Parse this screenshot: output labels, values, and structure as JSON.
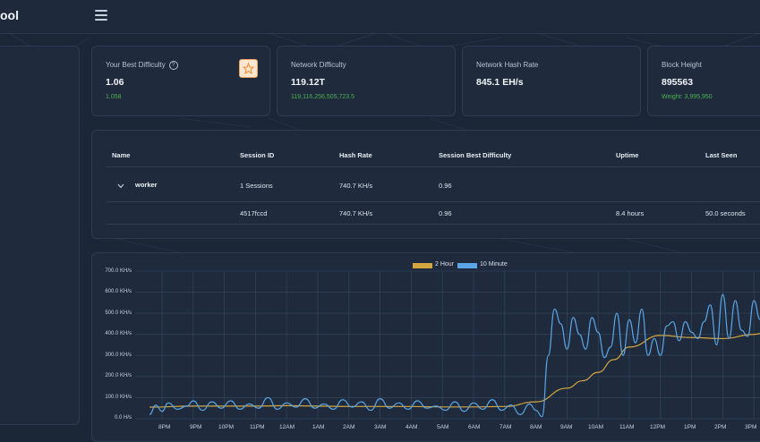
{
  "app": {
    "brand": "ool"
  },
  "icons": {
    "menu": "hamburger-menu-icon",
    "help": "help-circle-icon",
    "star": "star-icon",
    "expand": "chevron-down-icon"
  },
  "colors": {
    "background": "#1b2636",
    "card": "#1f2b3d",
    "positive": "#4caf50",
    "series_2h": "#d4a640",
    "series_10m": "#5aa6e6"
  },
  "stats": {
    "best_difficulty": {
      "label": "Your Best Difficulty",
      "value": "1.06",
      "sub": "1.058"
    },
    "network_difficulty": {
      "label": "Network Difficulty",
      "value": "119.12T",
      "sub": "119,116,256,505,723.5"
    },
    "network_hash_rate": {
      "label": "Network Hash Rate",
      "value": "845.1 EH/s"
    },
    "block_height": {
      "label": "Block Height",
      "value": "895563",
      "sub": "Weight: 3,995,950"
    }
  },
  "workers_table": {
    "headers": [
      "Name",
      "Session ID",
      "Hash Rate",
      "Session Best Difficulty",
      "Uptime",
      "Last Seen"
    ],
    "worker_row": {
      "name": "worker",
      "session": "1 Sessions",
      "hash_rate": "740.7 KH/s",
      "best_difficulty": "0.96"
    },
    "session_row": {
      "session_id": "4517fccd",
      "hash_rate": "740.7 KH/s",
      "best_difficulty": "0.96",
      "uptime": "8.4 hours",
      "last_seen": "50.0 seconds"
    }
  },
  "chart_data": {
    "type": "line",
    "legend": [
      "2 Hour",
      "10 Minute"
    ],
    "legend_position": "top-center",
    "y_ticks": [
      "700.0 KH/s",
      "600.0 KH/s",
      "500.0 KH/s",
      "400.0 KH/s",
      "300.0 KH/s",
      "200.0 KH/s",
      "100.0 KH/s",
      "0.0 H/s"
    ],
    "ylim": [
      0,
      700
    ],
    "x_ticks": [
      "8PM",
      "9PM",
      "10PM",
      "11PM",
      "12AM",
      "1AM",
      "2AM",
      "3AM",
      "4AM",
      "5AM",
      "6AM",
      "7AM",
      "8AM",
      "9AM",
      "10AM",
      "11AM",
      "12PM",
      "1PM",
      "2PM",
      "3PM"
    ],
    "grid": true,
    "series": [
      {
        "name": "2 Hour",
        "color": "#d4a640",
        "x": [
          7.6,
          9,
          10,
          11,
          12,
          13,
          14,
          15,
          16,
          17,
          18,
          19,
          20,
          21,
          21.5,
          22,
          22.5,
          23,
          24,
          25,
          26,
          27,
          27.6
        ],
        "values": [
          55,
          60,
          60,
          60,
          62,
          60,
          58,
          58,
          58,
          56,
          56,
          58,
          80,
          145,
          180,
          220,
          280,
          340,
          395,
          385,
          380,
          400,
          420
        ]
      },
      {
        "name": "10 Minute",
        "color": "#5aa6e6",
        "x": [
          7.6,
          7.8,
          8.0,
          8.2,
          8.5,
          8.8,
          9.0,
          9.3,
          9.6,
          9.9,
          10.2,
          10.5,
          10.8,
          11.1,
          11.4,
          11.7,
          12.0,
          12.3,
          12.6,
          12.9,
          13.2,
          13.5,
          13.8,
          14.1,
          14.4,
          14.7,
          15.0,
          15.3,
          15.6,
          15.9,
          16.2,
          16.5,
          16.8,
          17.1,
          17.4,
          17.7,
          18.0,
          18.3,
          18.6,
          18.9,
          19.2,
          19.5,
          19.8,
          20.0,
          20.2,
          20.4,
          20.6,
          20.8,
          21.0,
          21.2,
          21.4,
          21.6,
          21.8,
          22.0,
          22.2,
          22.4,
          22.6,
          22.8,
          23.0,
          23.2,
          23.4,
          23.6,
          23.8,
          24.0,
          24.2,
          24.4,
          24.6,
          24.8,
          25.0,
          25.2,
          25.4,
          25.6,
          25.8,
          26.0,
          26.2,
          26.4,
          26.6,
          26.8,
          27.0,
          27.2,
          27.4,
          27.6
        ],
        "values": [
          20,
          65,
          35,
          75,
          45,
          60,
          85,
          40,
          80,
          50,
          85,
          45,
          70,
          50,
          100,
          45,
          75,
          55,
          95,
          50,
          70,
          45,
          90,
          55,
          80,
          40,
          95,
          50,
          75,
          45,
          85,
          50,
          60,
          40,
          80,
          35,
          75,
          45,
          90,
          40,
          65,
          20,
          70,
          40,
          10,
          300,
          520,
          450,
          330,
          480,
          400,
          330,
          480,
          410,
          290,
          340,
          500,
          300,
          470,
          360,
          520,
          300,
          380,
          300,
          440,
          460,
          370,
          460,
          410,
          380,
          460,
          540,
          350,
          590,
          380,
          560,
          420,
          390,
          560,
          470,
          380,
          450
        ]
      }
    ]
  }
}
